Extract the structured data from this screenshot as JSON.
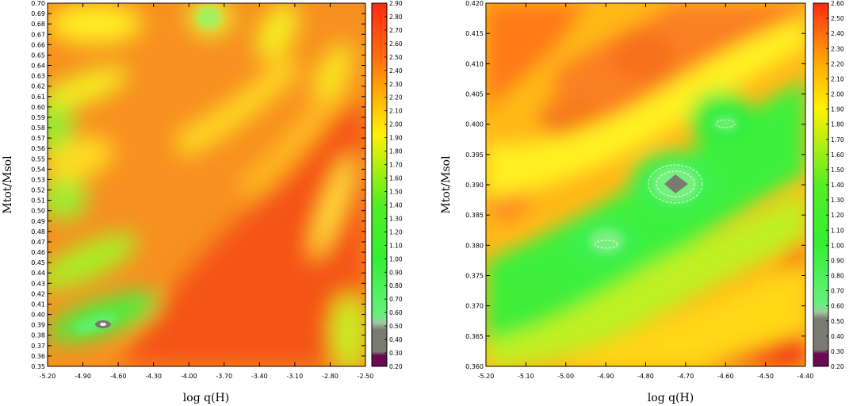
{
  "chart_data": [
    {
      "type": "heatmap",
      "xlabel": "log  q(H)",
      "ylabel": "Mtot/Msol",
      "x_ticks": [
        "-5.20",
        "-4.90",
        "-4.60",
        "-4.30",
        "-4.00",
        "-3.70",
        "-3.40",
        "-3.10",
        "-2.80",
        "-2.50"
      ],
      "y_ticks": [
        "0.35",
        "0.36",
        "0.37",
        "0.38",
        "0.39",
        "0.40",
        "0.41",
        "0.42",
        "0.43",
        "0.44",
        "0.45",
        "0.46",
        "0.47",
        "0.48",
        "0.49",
        "0.50",
        "0.51",
        "0.52",
        "0.53",
        "0.54",
        "0.55",
        "0.56",
        "0.57",
        "0.58",
        "0.59",
        "0.60",
        "0.61",
        "0.62",
        "0.63",
        "0.64",
        "0.65",
        "0.66",
        "0.67",
        "0.68",
        "0.69",
        "0.70"
      ],
      "xlim": [
        -5.2,
        -2.5
      ],
      "ylim": [
        0.35,
        0.7
      ],
      "colorbar_ticks": [
        "0.20",
        "0.30",
        "0.40",
        "0.50",
        "0.60",
        "0.70",
        "0.80",
        "0.90",
        "1.00",
        "1.10",
        "1.20",
        "1.30",
        "1.40",
        "1.50",
        "1.60",
        "1.70",
        "1.80",
        "1.90",
        "2.00",
        "2.10",
        "2.20",
        "2.30",
        "2.40",
        "2.50",
        "2.60",
        "2.70",
        "2.80",
        "2.90"
      ],
      "colorbar_range": [
        0.2,
        2.9
      ],
      "minimum": {
        "x": -4.75,
        "y": 0.39
      }
    },
    {
      "type": "heatmap",
      "xlabel": "log  q(H)",
      "ylabel": "Mtot/Msol",
      "x_ticks": [
        "-5.20",
        "-5.10",
        "-5.00",
        "-4.90",
        "-4.80",
        "-4.70",
        "-4.60",
        "-4.50",
        "-4.40"
      ],
      "y_ticks": [
        "0.360",
        "0.365",
        "0.370",
        "0.375",
        "0.380",
        "0.385",
        "0.390",
        "0.395",
        "0.400",
        "0.405",
        "0.410",
        "0.415",
        "0.420"
      ],
      "xlim": [
        -5.2,
        -4.4
      ],
      "ylim": [
        0.36,
        0.42
      ],
      "colorbar_ticks": [
        "0.20",
        "0.30",
        "0.40",
        "0.50",
        "0.60",
        "0.70",
        "0.80",
        "0.90",
        "1.00",
        "1.10",
        "1.20",
        "1.30",
        "1.40",
        "1.50",
        "1.60",
        "1.70",
        "1.80",
        "1.90",
        "2.00",
        "2.10",
        "2.20",
        "2.30",
        "2.40",
        "2.50",
        "2.60"
      ],
      "colorbar_range": [
        0.2,
        2.6
      ],
      "minimum": {
        "x": -4.72,
        "y": 0.39
      }
    }
  ]
}
